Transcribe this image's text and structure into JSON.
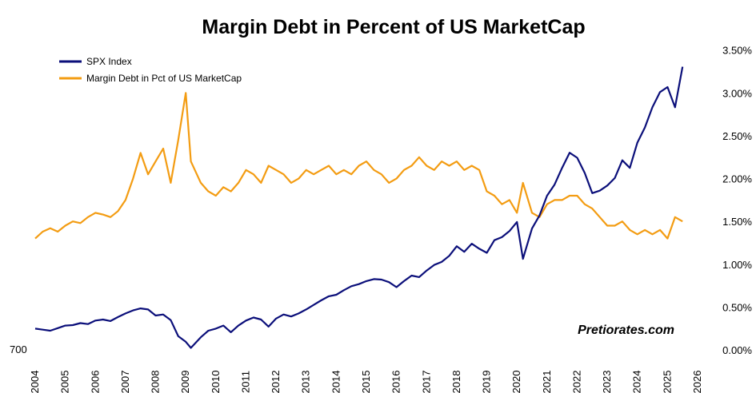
{
  "chart_data": {
    "type": "line",
    "title": "Margin Debt in Percent of US MarketCap",
    "watermark": "Pretiorates.com",
    "x_axis": {
      "range": [
        2004,
        2026
      ],
      "tick_labels": [
        "2004",
        "2005",
        "2006",
        "2007",
        "2008",
        "2009",
        "2010",
        "2011",
        "2012",
        "2013",
        "2014",
        "2015",
        "2016",
        "2017",
        "2018",
        "2019",
        "2020",
        "2021",
        "2022",
        "2023",
        "2024",
        "2025",
        "2026"
      ]
    },
    "left_axis": {
      "range": [
        700,
        6800
      ],
      "tick_labels": [
        "700"
      ]
    },
    "right_axis": {
      "range": [
        0,
        3.6
      ],
      "ticks": [
        0,
        0.5,
        1.0,
        1.5,
        2.0,
        2.5,
        3.0,
        3.5
      ],
      "tick_labels": [
        "0.00%",
        "0.50%",
        "1.00%",
        "1.50%",
        "2.00%",
        "2.50%",
        "3.00%",
        "3.50%"
      ]
    },
    "legend_position": "top-left",
    "series": [
      {
        "name": "SPX Index",
        "axis": "left",
        "color": "#0b0f7a",
        "x": [
          2004,
          2004.25,
          2004.5,
          2004.75,
          2005,
          2005.25,
          2005.5,
          2005.75,
          2006,
          2006.25,
          2006.5,
          2006.75,
          2007,
          2007.25,
          2007.5,
          2007.75,
          2008,
          2008.25,
          2008.5,
          2008.75,
          2009,
          2009.17,
          2009.5,
          2009.75,
          2010,
          2010.25,
          2010.5,
          2010.75,
          2011,
          2011.25,
          2011.5,
          2011.75,
          2012,
          2012.25,
          2012.5,
          2012.75,
          2013,
          2013.25,
          2013.5,
          2013.75,
          2014,
          2014.25,
          2014.5,
          2014.75,
          2015,
          2015.25,
          2015.5,
          2015.75,
          2016,
          2016.25,
          2016.5,
          2016.75,
          2017,
          2017.25,
          2017.5,
          2017.75,
          2018,
          2018.25,
          2018.5,
          2018.75,
          2019,
          2019.25,
          2019.5,
          2019.75,
          2020,
          2020.2,
          2020.5,
          2020.75,
          2021,
          2021.25,
          2021.5,
          2021.75,
          2022,
          2022.25,
          2022.5,
          2022.75,
          2023,
          2023.25,
          2023.5,
          2023.75,
          2024,
          2024.25,
          2024.5,
          2024.75,
          2025,
          2025.25,
          2025.5
        ],
        "values": [
          1120,
          1100,
          1080,
          1130,
          1180,
          1190,
          1230,
          1210,
          1280,
          1300,
          1270,
          1350,
          1420,
          1480,
          1520,
          1500,
          1380,
          1400,
          1290,
          970,
          860,
          740,
          950,
          1080,
          1120,
          1180,
          1050,
          1180,
          1280,
          1340,
          1300,
          1160,
          1320,
          1400,
          1360,
          1420,
          1500,
          1590,
          1680,
          1760,
          1790,
          1880,
          1960,
          2000,
          2060,
          2100,
          2090,
          2040,
          1940,
          2060,
          2170,
          2140,
          2270,
          2380,
          2440,
          2560,
          2750,
          2640,
          2800,
          2700,
          2620,
          2870,
          2930,
          3050,
          3230,
          2500,
          3100,
          3360,
          3750,
          3970,
          4300,
          4600,
          4500,
          4200,
          3800,
          3850,
          3950,
          4100,
          4450,
          4300,
          4800,
          5100,
          5500,
          5800,
          5900,
          5500,
          6300
        ]
      },
      {
        "name": "Margin Debt in Pct of US MarketCap",
        "axis": "right",
        "color": "#f39c12",
        "x": [
          2004,
          2004.25,
          2004.5,
          2004.75,
          2005,
          2005.25,
          2005.5,
          2005.75,
          2006,
          2006.25,
          2006.5,
          2006.75,
          2007,
          2007.25,
          2007.5,
          2007.75,
          2008,
          2008.25,
          2008.5,
          2008.75,
          2009,
          2009.17,
          2009.5,
          2009.75,
          2010,
          2010.25,
          2010.5,
          2010.75,
          2011,
          2011.25,
          2011.5,
          2011.75,
          2012,
          2012.25,
          2012.5,
          2012.75,
          2013,
          2013.25,
          2013.5,
          2013.75,
          2014,
          2014.25,
          2014.5,
          2014.75,
          2015,
          2015.25,
          2015.5,
          2015.75,
          2016,
          2016.25,
          2016.5,
          2016.75,
          2017,
          2017.25,
          2017.5,
          2017.75,
          2018,
          2018.25,
          2018.5,
          2018.75,
          2019,
          2019.25,
          2019.5,
          2019.75,
          2020,
          2020.2,
          2020.5,
          2020.75,
          2021,
          2021.25,
          2021.5,
          2021.75,
          2022,
          2022.25,
          2022.5,
          2022.75,
          2023,
          2023.25,
          2023.5,
          2023.75,
          2024,
          2024.25,
          2024.5,
          2024.75,
          2025,
          2025.25,
          2025.5
        ],
        "values": [
          1.3,
          1.38,
          1.42,
          1.38,
          1.45,
          1.5,
          1.48,
          1.55,
          1.6,
          1.58,
          1.55,
          1.62,
          1.75,
          2.0,
          2.3,
          2.05,
          2.2,
          2.35,
          1.95,
          2.45,
          3.0,
          2.2,
          1.95,
          1.85,
          1.8,
          1.9,
          1.85,
          1.95,
          2.1,
          2.05,
          1.95,
          2.15,
          2.1,
          2.05,
          1.95,
          2.0,
          2.1,
          2.05,
          2.1,
          2.15,
          2.05,
          2.1,
          2.05,
          2.15,
          2.2,
          2.1,
          2.05,
          1.95,
          2.0,
          2.1,
          2.15,
          2.25,
          2.15,
          2.1,
          2.2,
          2.15,
          2.2,
          2.1,
          2.15,
          2.1,
          1.85,
          1.8,
          1.7,
          1.75,
          1.6,
          1.95,
          1.6,
          1.55,
          1.7,
          1.75,
          1.75,
          1.8,
          1.8,
          1.7,
          1.65,
          1.55,
          1.45,
          1.45,
          1.5,
          1.4,
          1.35,
          1.4,
          1.35,
          1.4,
          1.3,
          1.55,
          1.5
        ]
      }
    ]
  }
}
